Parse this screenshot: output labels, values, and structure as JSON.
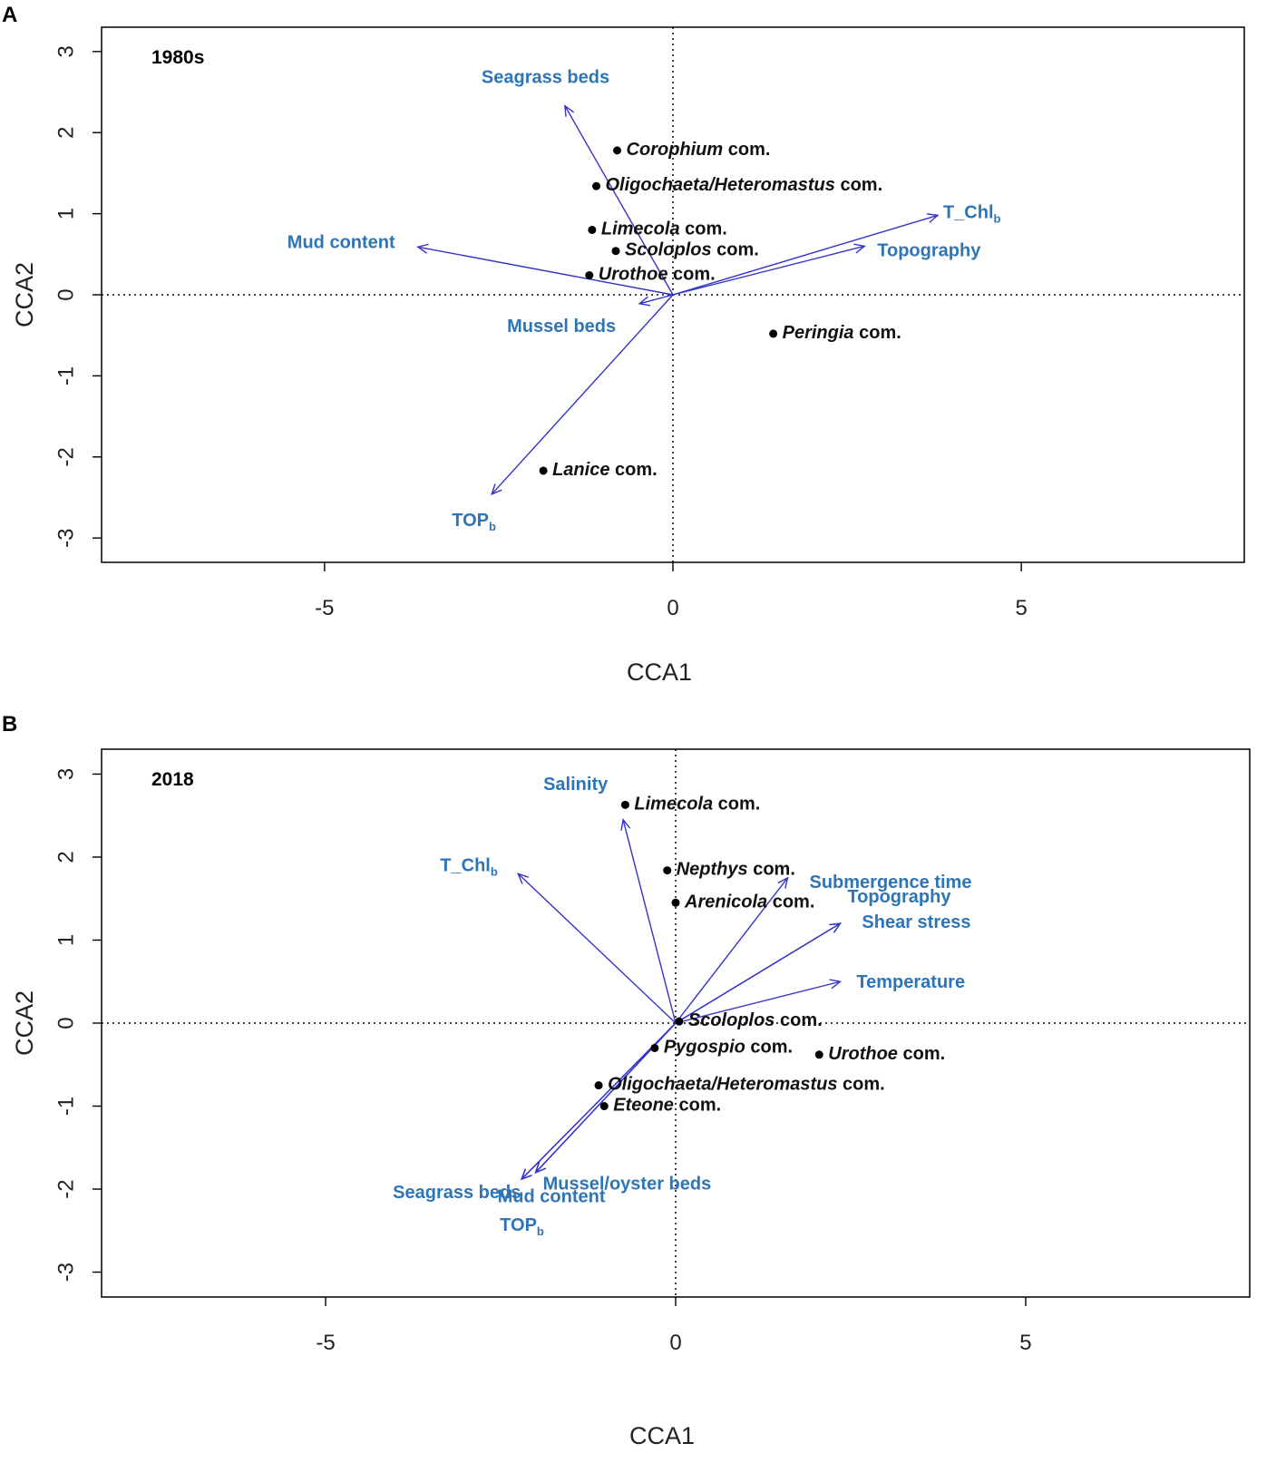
{
  "chart_data": [
    {
      "type": "scatter",
      "panel": "A",
      "title": "1980s",
      "xlabel": "CCA1",
      "ylabel": "CCA2",
      "xlim": [
        -8.2,
        8.2
      ],
      "ylim": [
        -3.3,
        3.3
      ],
      "xticks": [
        -5,
        0,
        5
      ],
      "yticks": [
        -3,
        -2,
        -1,
        0,
        1,
        2,
        3
      ],
      "species": [
        {
          "genus": "Corophium",
          "suffix": " com.",
          "x": -0.8,
          "y": 1.78
        },
        {
          "genus": "Oligochaeta/Heteromastus",
          "suffix": " com.",
          "x": -1.1,
          "y": 1.34
        },
        {
          "genus": "Limecola",
          "suffix": " com.",
          "x": -1.16,
          "y": 0.8
        },
        {
          "genus": "Scoloplos",
          "suffix": " com.",
          "x": -0.82,
          "y": 0.54
        },
        {
          "genus": "Urothoe",
          "suffix": " com.",
          "x": -1.2,
          "y": 0.24
        },
        {
          "genus": "Peringia",
          "suffix": " com.",
          "x": 1.44,
          "y": -0.48
        },
        {
          "genus": "Lanice",
          "suffix": " com.",
          "x": -1.86,
          "y": -2.17
        }
      ],
      "env_vectors": [
        {
          "name": "Seagrass beds",
          "sub": "",
          "x": -1.55,
          "y": 2.33
        },
        {
          "name": "Mud content",
          "sub": "",
          "x": -3.66,
          "y": 0.59
        },
        {
          "name": "Mussel beds",
          "sub": "",
          "x": -0.48,
          "y": -0.11
        },
        {
          "name": "T_Chl",
          "sub": "b",
          "x": 3.8,
          "y": 0.98
        },
        {
          "name": "Topography",
          "sub": "",
          "x": 2.75,
          "y": 0.6
        },
        {
          "name": "TOP",
          "sub": "b",
          "x": -2.6,
          "y": -2.46
        }
      ]
    },
    {
      "type": "scatter",
      "panel": "B",
      "title": "2018",
      "xlabel": "CCA1",
      "ylabel": "CCA2",
      "xlim": [
        -8.2,
        8.2
      ],
      "ylim": [
        -3.3,
        3.3
      ],
      "xticks": [
        -5,
        0,
        5
      ],
      "yticks": [
        -3,
        -2,
        -1,
        0,
        1,
        2,
        3
      ],
      "species": [
        {
          "genus": "Limecola",
          "suffix": " com.",
          "x": -0.72,
          "y": 2.63
        },
        {
          "genus": "Nepthys",
          "suffix": " com.",
          "x": -0.12,
          "y": 1.84
        },
        {
          "genus": "Arenicola",
          "suffix": " com.",
          "x": 0.0,
          "y": 1.45
        },
        {
          "genus": "Scoloplos",
          "suffix": " com.",
          "x": 0.05,
          "y": 0.02
        },
        {
          "genus": "Pygospio",
          "suffix": " com.",
          "x": -0.3,
          "y": -0.3
        },
        {
          "genus": "Urothoe",
          "suffix": " com.",
          "x": 2.05,
          "y": -0.38
        },
        {
          "genus": "Oligochaeta/Heteromastus",
          "suffix": " com.",
          "x": -1.1,
          "y": -0.75
        },
        {
          "genus": "Eteone",
          "suffix": " com.",
          "x": -1.02,
          "y": -1.0
        }
      ],
      "env_vectors": [
        {
          "name": "Salinity",
          "sub": "",
          "x": -0.75,
          "y": 2.45
        },
        {
          "name": "T_Chl",
          "sub": "b",
          "x": -2.25,
          "y": 1.8
        },
        {
          "name": "Submergence time",
          "sub": "",
          "x": 1.6,
          "y": 1.75
        },
        {
          "name": "Topography",
          "sub": "",
          "x": 2.35,
          "y": 1.2
        },
        {
          "name": "Shear stress",
          "sub": "",
          "x": 2.35,
          "y": 1.2
        },
        {
          "name": "Temperature",
          "sub": "",
          "x": 2.35,
          "y": 0.5
        },
        {
          "name": "Mud content",
          "sub": "",
          "x": -2.0,
          "y": -1.8
        },
        {
          "name": "Mussel/oyster beds",
          "sub": "",
          "x": -2.0,
          "y": -1.8
        },
        {
          "name": "Seagrass beds",
          "sub": "",
          "x": -2.2,
          "y": -1.88
        },
        {
          "name": "TOP",
          "sub": "b",
          "x": -2.2,
          "y": -1.88
        }
      ]
    }
  ]
}
